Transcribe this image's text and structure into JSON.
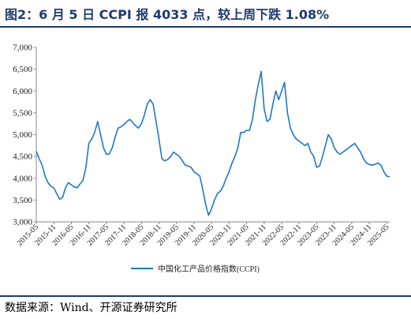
{
  "figure": {
    "title": "图2：6 月 5 日 CCPI 报 4033 点，较上周下跌 1.08%",
    "source": "数据来源：Wind、开源证券研究所"
  },
  "colors": {
    "brand": "#1f3b70",
    "series": "#1f77c8",
    "axis": "#888888"
  },
  "chart_data": {
    "type": "line",
    "ylim": [
      3000,
      7000
    ],
    "yticks": [
      3000,
      3500,
      4000,
      4500,
      5000,
      5500,
      6000,
      6500,
      7000
    ],
    "ytick_labels": [
      "3,000",
      "3,500",
      "4,000",
      "4,500",
      "5,000",
      "5,500",
      "6,000",
      "6,500",
      "7,000"
    ],
    "xtick_labels": [
      "2015-05",
      "2015-11",
      "2016-05",
      "2016-11",
      "2017-05",
      "2017-11",
      "2018-05",
      "2018-11",
      "2019-05",
      "2019-11",
      "2020-05",
      "2020-11",
      "2021-05",
      "2021-11",
      "2022-05",
      "2022-11",
      "2023-05",
      "2023-11",
      "2024-05",
      "2024-11",
      "2025-05"
    ],
    "x_start": "2015-05",
    "x_end": "2025-06",
    "legend_position": "bottom-center",
    "grid": false,
    "series": [
      {
        "name": "中国化工产品价格指数(CCPI)",
        "points": [
          [
            "2015-05",
            4620
          ],
          [
            "2015-06",
            4450
          ],
          [
            "2015-07",
            4300
          ],
          [
            "2015-08",
            4050
          ],
          [
            "2015-09",
            3900
          ],
          [
            "2015-10",
            3820
          ],
          [
            "2015-11",
            3780
          ],
          [
            "2015-12",
            3650
          ],
          [
            "2016-01",
            3520
          ],
          [
            "2016-02",
            3560
          ],
          [
            "2016-03",
            3780
          ],
          [
            "2016-04",
            3900
          ],
          [
            "2016-05",
            3850
          ],
          [
            "2016-06",
            3800
          ],
          [
            "2016-07",
            3780
          ],
          [
            "2016-08",
            3870
          ],
          [
            "2016-09",
            3950
          ],
          [
            "2016-10",
            4250
          ],
          [
            "2016-11",
            4800
          ],
          [
            "2016-12",
            4900
          ],
          [
            "2017-01",
            5050
          ],
          [
            "2017-02",
            5300
          ],
          [
            "2017-03",
            5000
          ],
          [
            "2017-04",
            4700
          ],
          [
            "2017-05",
            4550
          ],
          [
            "2017-06",
            4560
          ],
          [
            "2017-07",
            4700
          ],
          [
            "2017-08",
            4950
          ],
          [
            "2017-09",
            5150
          ],
          [
            "2017-10",
            5180
          ],
          [
            "2017-11",
            5230
          ],
          [
            "2017-12",
            5300
          ],
          [
            "2018-01",
            5350
          ],
          [
            "2018-02",
            5280
          ],
          [
            "2018-03",
            5200
          ],
          [
            "2018-04",
            5150
          ],
          [
            "2018-05",
            5250
          ],
          [
            "2018-06",
            5450
          ],
          [
            "2018-07",
            5700
          ],
          [
            "2018-08",
            5800
          ],
          [
            "2018-09",
            5700
          ],
          [
            "2018-10",
            5300
          ],
          [
            "2018-11",
            4900
          ],
          [
            "2018-12",
            4450
          ],
          [
            "2019-01",
            4400
          ],
          [
            "2019-02",
            4430
          ],
          [
            "2019-03",
            4500
          ],
          [
            "2019-04",
            4600
          ],
          [
            "2019-05",
            4550
          ],
          [
            "2019-06",
            4500
          ],
          [
            "2019-07",
            4400
          ],
          [
            "2019-08",
            4300
          ],
          [
            "2019-09",
            4280
          ],
          [
            "2019-10",
            4250
          ],
          [
            "2019-11",
            4150
          ],
          [
            "2019-12",
            4100
          ],
          [
            "2020-01",
            4050
          ],
          [
            "2020-02",
            3750
          ],
          [
            "2020-03",
            3400
          ],
          [
            "2020-04",
            3150
          ],
          [
            "2020-05",
            3300
          ],
          [
            "2020-06",
            3500
          ],
          [
            "2020-07",
            3650
          ],
          [
            "2020-08",
            3700
          ],
          [
            "2020-09",
            3820
          ],
          [
            "2020-10",
            4000
          ],
          [
            "2020-11",
            4150
          ],
          [
            "2020-12",
            4350
          ],
          [
            "2021-01",
            4500
          ],
          [
            "2021-02",
            4700
          ],
          [
            "2021-03",
            5050
          ],
          [
            "2021-04",
            5050
          ],
          [
            "2021-05",
            5100
          ],
          [
            "2021-06",
            5100
          ],
          [
            "2021-07",
            5350
          ],
          [
            "2021-08",
            5800
          ],
          [
            "2021-09",
            6150
          ],
          [
            "2021-10",
            6450
          ],
          [
            "2021-11",
            5600
          ],
          [
            "2021-12",
            5300
          ],
          [
            "2022-01",
            5350
          ],
          [
            "2022-02",
            5700
          ],
          [
            "2022-03",
            6000
          ],
          [
            "2022-04",
            5800
          ],
          [
            "2022-05",
            6000
          ],
          [
            "2022-06",
            6200
          ],
          [
            "2022-07",
            5500
          ],
          [
            "2022-08",
            5150
          ],
          [
            "2022-09",
            5000
          ],
          [
            "2022-10",
            4900
          ],
          [
            "2022-11",
            4850
          ],
          [
            "2022-12",
            4800
          ],
          [
            "2023-01",
            4750
          ],
          [
            "2023-02",
            4800
          ],
          [
            "2023-03",
            4600
          ],
          [
            "2023-04",
            4500
          ],
          [
            "2023-05",
            4250
          ],
          [
            "2023-06",
            4280
          ],
          [
            "2023-07",
            4500
          ],
          [
            "2023-08",
            4750
          ],
          [
            "2023-09",
            5000
          ],
          [
            "2023-10",
            4900
          ],
          [
            "2023-11",
            4700
          ],
          [
            "2023-12",
            4600
          ],
          [
            "2024-01",
            4550
          ],
          [
            "2024-02",
            4600
          ],
          [
            "2024-03",
            4650
          ],
          [
            "2024-04",
            4700
          ],
          [
            "2024-05",
            4750
          ],
          [
            "2024-06",
            4800
          ],
          [
            "2024-07",
            4700
          ],
          [
            "2024-08",
            4600
          ],
          [
            "2024-09",
            4450
          ],
          [
            "2024-10",
            4350
          ],
          [
            "2024-11",
            4320
          ],
          [
            "2024-12",
            4300
          ],
          [
            "2025-01",
            4320
          ],
          [
            "2025-02",
            4350
          ],
          [
            "2025-03",
            4300
          ],
          [
            "2025-04",
            4150
          ],
          [
            "2025-05",
            4050
          ],
          [
            "2025-06",
            4033
          ]
        ]
      }
    ]
  }
}
